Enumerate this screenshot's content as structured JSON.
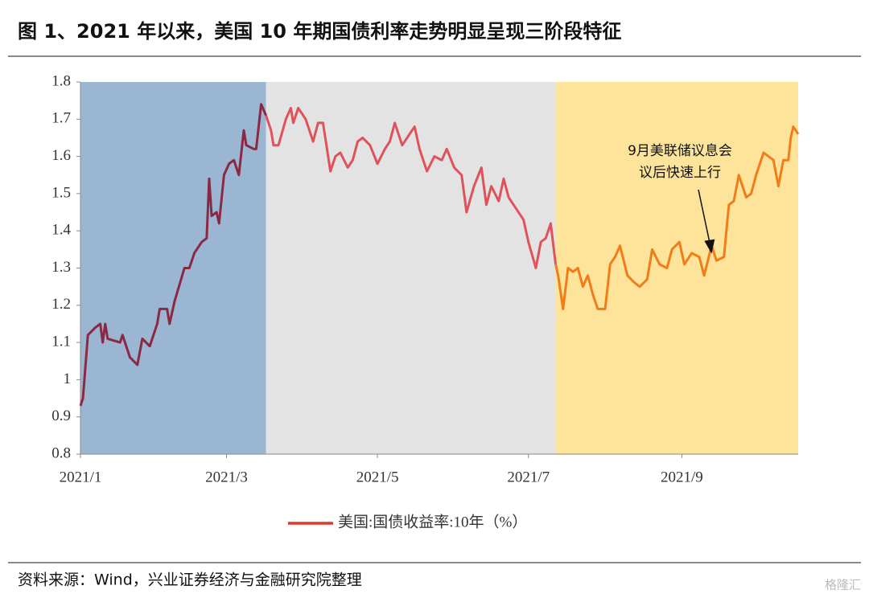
{
  "chart_data": {
    "type": "line",
    "title": "图 1、2021 年以来，美国 10 年期国债利率走势明显呈现三阶段特征",
    "source": "资料来源：Wind，兴业证券经济与金融研究院整理",
    "watermark": "格隆汇",
    "xlim": [
      0,
      290
    ],
    "xticks": [
      {
        "value": 0,
        "label": "2021/1"
      },
      {
        "value": 59,
        "label": "2021/3"
      },
      {
        "value": 120,
        "label": "2021/5"
      },
      {
        "value": 181,
        "label": "2021/7"
      },
      {
        "value": 243,
        "label": "2021/9"
      }
    ],
    "ylim": [
      0.8,
      1.8
    ],
    "yticks": [
      0.8,
      0.9,
      1,
      1.1,
      1.2,
      1.3,
      1.4,
      1.5,
      1.6,
      1.7,
      1.8
    ],
    "bands": [
      {
        "range": [
          0,
          75
        ],
        "fill": "#9ab6d3",
        "line_color": "#8b2842"
      },
      {
        "range": [
          75,
          192
        ],
        "fill": "#e3e3e3",
        "line_color": "#e0525a"
      },
      {
        "range": [
          192,
          290
        ],
        "fill": "#fde49a",
        "line_color": "#f07d1a"
      }
    ],
    "annotation": {
      "lines": [
        "9月美联储议息会",
        "议后快速上行"
      ],
      "x": 255,
      "y": 1.33
    },
    "series": [
      {
        "name": "美国:国债收益率:10年（%）",
        "color": "#e0392b",
        "x": [
          0,
          1,
          3,
          6,
          8,
          9,
          10,
          11,
          16,
          17,
          20,
          23,
          25,
          28,
          31,
          32,
          35,
          36,
          38,
          42,
          44,
          46,
          49,
          51,
          52,
          53,
          55,
          56,
          58,
          60,
          62,
          64,
          66,
          67,
          70,
          71,
          73,
          75,
          77,
          78,
          80,
          83,
          85,
          86,
          88,
          91,
          94,
          96,
          98,
          101,
          103,
          105,
          108,
          110,
          112,
          114,
          117,
          120,
          123,
          125,
          127,
          130,
          133,
          135,
          137,
          140,
          143,
          146,
          148,
          151,
          154,
          156,
          159,
          162,
          164,
          166,
          169,
          171,
          173,
          176,
          179,
          181,
          184,
          186,
          188,
          190,
          192,
          193,
          195,
          197,
          199,
          201,
          203,
          205,
          207,
          209,
          212,
          214,
          216,
          218,
          221,
          224,
          226,
          229,
          231,
          234,
          237,
          239,
          242,
          244,
          247,
          250,
          252,
          255,
          257,
          260,
          262,
          264,
          266,
          269,
          271,
          273,
          276,
          278,
          280,
          282,
          284,
          286,
          287,
          288,
          290
        ],
        "values": [
          0.93,
          0.95,
          1.12,
          1.14,
          1.15,
          1.1,
          1.15,
          1.11,
          1.1,
          1.12,
          1.06,
          1.04,
          1.11,
          1.09,
          1.15,
          1.19,
          1.19,
          1.15,
          1.21,
          1.3,
          1.3,
          1.34,
          1.37,
          1.38,
          1.54,
          1.44,
          1.45,
          1.42,
          1.55,
          1.58,
          1.59,
          1.55,
          1.67,
          1.63,
          1.62,
          1.62,
          1.74,
          1.71,
          1.67,
          1.63,
          1.63,
          1.7,
          1.73,
          1.69,
          1.73,
          1.7,
          1.64,
          1.69,
          1.69,
          1.56,
          1.6,
          1.61,
          1.57,
          1.59,
          1.64,
          1.65,
          1.63,
          1.58,
          1.62,
          1.64,
          1.69,
          1.63,
          1.66,
          1.68,
          1.62,
          1.56,
          1.6,
          1.59,
          1.62,
          1.57,
          1.55,
          1.45,
          1.52,
          1.57,
          1.47,
          1.52,
          1.48,
          1.54,
          1.49,
          1.46,
          1.43,
          1.37,
          1.3,
          1.37,
          1.38,
          1.42,
          1.31,
          1.28,
          1.19,
          1.3,
          1.29,
          1.3,
          1.25,
          1.28,
          1.23,
          1.19,
          1.19,
          1.31,
          1.33,
          1.36,
          1.28,
          1.26,
          1.25,
          1.27,
          1.35,
          1.31,
          1.3,
          1.35,
          1.37,
          1.31,
          1.34,
          1.33,
          1.28,
          1.36,
          1.32,
          1.33,
          1.47,
          1.48,
          1.55,
          1.49,
          1.5,
          1.55,
          1.61,
          1.6,
          1.59,
          1.52,
          1.59,
          1.59,
          1.65,
          1.68,
          1.66
        ]
      }
    ]
  }
}
